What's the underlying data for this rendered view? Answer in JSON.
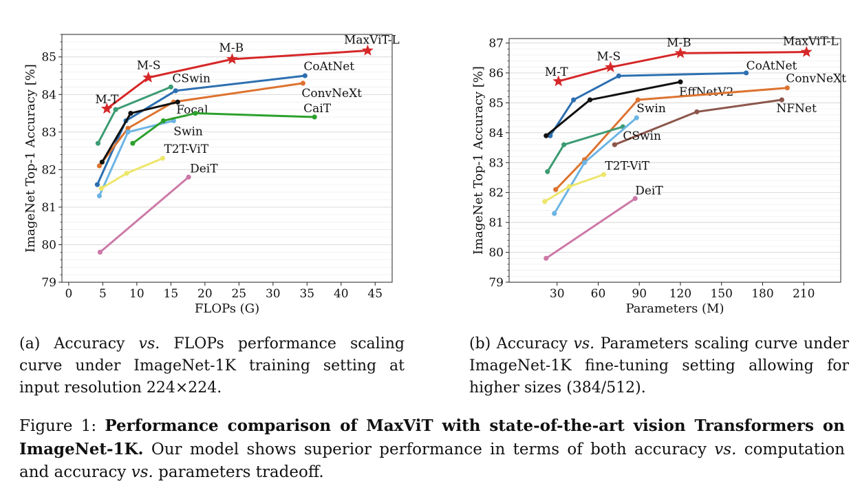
{
  "chart_data": [
    {
      "type": "line",
      "xlabel": "FLOPs (G)",
      "ylabel": "ImageNet Top-1 Accuracy [%]",
      "xlim": [
        -1,
        47.5
      ],
      "ylim": [
        79,
        85.6
      ],
      "xticks": [
        0,
        5,
        10,
        15,
        20,
        25,
        30,
        35,
        40,
        45
      ],
      "yticks": [
        79,
        80,
        81,
        82,
        83,
        84,
        85
      ],
      "grid": "horizontal",
      "series": [
        {
          "name": "MaxViT-L",
          "color": "#d62728",
          "marker": "star",
          "x": [
            5.6,
            11.7,
            24.0,
            43.9
          ],
          "y": [
            83.62,
            84.45,
            84.94,
            85.17
          ],
          "point_labels": [
            "M-T",
            "M-S",
            "M-B",
            "MaxViT-L"
          ]
        },
        {
          "name": "CoAtNet",
          "color": "#2c6fb0",
          "marker": "dot",
          "x": [
            4.2,
            8.4,
            15.7,
            34.7
          ],
          "y": [
            81.6,
            83.3,
            84.1,
            84.5
          ]
        },
        {
          "name": "ConvNeXt",
          "color": "#dd7330",
          "marker": "dot",
          "x": [
            4.5,
            8.7,
            15.4,
            34.4
          ],
          "y": [
            82.1,
            83.1,
            83.8,
            84.3
          ]
        },
        {
          "name": "CSwin",
          "color": "#3c9b73",
          "marker": "dot",
          "x": [
            4.3,
            6.9,
            15.0
          ],
          "y": [
            82.7,
            83.6,
            84.2
          ]
        },
        {
          "name": "Focal",
          "color": "#111111",
          "marker": "dot",
          "x": [
            4.9,
            9.1,
            16.0
          ],
          "y": [
            82.2,
            83.5,
            83.8
          ]
        },
        {
          "name": "Swin",
          "color": "#6cb4e4",
          "marker": "dot",
          "x": [
            4.5,
            8.7,
            15.4
          ],
          "y": [
            81.3,
            83.0,
            83.3
          ]
        },
        {
          "name": "CaiT",
          "color": "#2ca02c",
          "marker": "dot",
          "x": [
            9.4,
            13.9,
            18.6,
            36.1
          ],
          "y": [
            82.7,
            83.3,
            83.5,
            83.4
          ]
        },
        {
          "name": "T2T-ViT",
          "color": "#ede66a",
          "marker": "dot",
          "x": [
            4.8,
            8.5,
            13.8
          ],
          "y": [
            81.5,
            81.9,
            82.3
          ]
        },
        {
          "name": "DeiT",
          "color": "#cc79a7",
          "marker": "dot",
          "x": [
            4.6,
            17.6
          ],
          "y": [
            79.8,
            81.8
          ]
        }
      ]
    },
    {
      "type": "line",
      "xlabel": "Parameters (M)",
      "ylabel": "ImageNet Top-1 Accuracy [%]",
      "xlim": [
        -5,
        237
      ],
      "ylim": [
        79,
        87.15
      ],
      "xticks": [
        30,
        60,
        90,
        120,
        150,
        180,
        210
      ],
      "yticks": [
        79,
        80,
        81,
        82,
        83,
        84,
        85,
        86,
        87
      ],
      "grid": "horizontal",
      "series": [
        {
          "name": "MaxViT-L",
          "color": "#d62728",
          "marker": "star",
          "x": [
            31,
            69,
            120,
            212
          ],
          "y": [
            85.72,
            86.19,
            86.66,
            86.7
          ],
          "point_labels": [
            "M-T",
            "M-S",
            "M-B",
            "MaxViT-L"
          ]
        },
        {
          "name": "CoAtNet",
          "color": "#2c6fb0",
          "marker": "dot",
          "x": [
            25,
            42,
            75,
            168
          ],
          "y": [
            83.9,
            85.1,
            85.9,
            86.0
          ]
        },
        {
          "name": "EffNetV2",
          "color": "#111111",
          "marker": "dot",
          "x": [
            22,
            54,
            120
          ],
          "y": [
            83.9,
            85.1,
            85.7
          ]
        },
        {
          "name": "ConvNeXt",
          "color": "#dd7330",
          "marker": "dot",
          "x": [
            29,
            50,
            89,
            198
          ],
          "y": [
            82.1,
            83.1,
            85.1,
            85.5
          ]
        },
        {
          "name": "NFNet",
          "color": "#8c564b",
          "marker": "dot",
          "x": [
            72,
            132,
            194
          ],
          "y": [
            83.6,
            84.7,
            85.1
          ]
        },
        {
          "name": "CSwin",
          "color": "#3c9b73",
          "marker": "dot",
          "x": [
            23,
            35,
            78
          ],
          "y": [
            82.7,
            83.6,
            84.2
          ]
        },
        {
          "name": "Swin",
          "color": "#6cb4e4",
          "marker": "dot",
          "x": [
            28,
            50,
            88
          ],
          "y": [
            81.3,
            83.0,
            84.5
          ]
        },
        {
          "name": "T2T-ViT",
          "color": "#ede66a",
          "marker": "dot",
          "x": [
            21,
            39,
            64
          ],
          "y": [
            81.7,
            82.2,
            82.6
          ]
        },
        {
          "name": "DeiT",
          "color": "#cc79a7",
          "marker": "dot",
          "x": [
            22,
            87
          ],
          "y": [
            79.8,
            81.8
          ]
        }
      ]
    }
  ],
  "subcaptions": {
    "a_prefix": "(a) Accuracy ",
    "a_vs": "vs.",
    "a_rest": " FLOPs performance scaling curve under ImageNet-1K training setting at input resolution 224×224.",
    "b_prefix": "(b) Accuracy ",
    "b_vs": "vs.",
    "b_rest": " Parameters scaling curve under ImageNet-1K fine-tuning setting allowing for higher sizes (384/512)."
  },
  "figure_caption": {
    "label": "Figure 1: ",
    "bold": "Performance comparison of MaxViT with state-of-the-art vision Transformers on ImageNet-1K.",
    "rest1": " Our model shows superior performance in terms of both accuracy ",
    "vs1": "vs.",
    "rest2": " computation and accuracy ",
    "vs2": "vs.",
    "rest3": " parameters tradeoff."
  }
}
